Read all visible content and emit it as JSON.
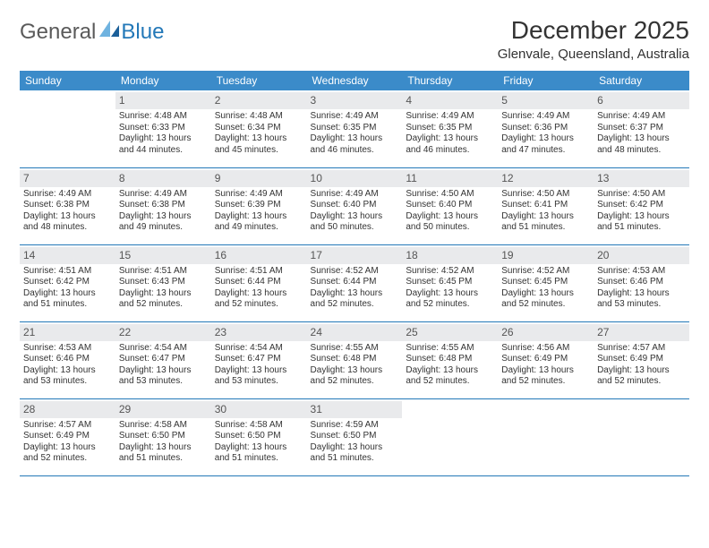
{
  "logo": {
    "text1": "General",
    "text2": "Blue"
  },
  "title": "December 2025",
  "location": "Glenvale, Queensland, Australia",
  "colors": {
    "header_bg": "#3b8bc9",
    "header_text": "#ffffff",
    "daynum_bg": "#e9eaec",
    "border": "#2378b8",
    "brand_gray": "#5a5a5a",
    "brand_blue": "#2378b8"
  },
  "weekdays": [
    "Sunday",
    "Monday",
    "Tuesday",
    "Wednesday",
    "Thursday",
    "Friday",
    "Saturday"
  ],
  "weeks": [
    [
      null,
      {
        "n": "1",
        "sr": "Sunrise: 4:48 AM",
        "ss": "Sunset: 6:33 PM",
        "d1": "Daylight: 13 hours",
        "d2": "and 44 minutes."
      },
      {
        "n": "2",
        "sr": "Sunrise: 4:48 AM",
        "ss": "Sunset: 6:34 PM",
        "d1": "Daylight: 13 hours",
        "d2": "and 45 minutes."
      },
      {
        "n": "3",
        "sr": "Sunrise: 4:49 AM",
        "ss": "Sunset: 6:35 PM",
        "d1": "Daylight: 13 hours",
        "d2": "and 46 minutes."
      },
      {
        "n": "4",
        "sr": "Sunrise: 4:49 AM",
        "ss": "Sunset: 6:35 PM",
        "d1": "Daylight: 13 hours",
        "d2": "and 46 minutes."
      },
      {
        "n": "5",
        "sr": "Sunrise: 4:49 AM",
        "ss": "Sunset: 6:36 PM",
        "d1": "Daylight: 13 hours",
        "d2": "and 47 minutes."
      },
      {
        "n": "6",
        "sr": "Sunrise: 4:49 AM",
        "ss": "Sunset: 6:37 PM",
        "d1": "Daylight: 13 hours",
        "d2": "and 48 minutes."
      }
    ],
    [
      {
        "n": "7",
        "sr": "Sunrise: 4:49 AM",
        "ss": "Sunset: 6:38 PM",
        "d1": "Daylight: 13 hours",
        "d2": "and 48 minutes."
      },
      {
        "n": "8",
        "sr": "Sunrise: 4:49 AM",
        "ss": "Sunset: 6:38 PM",
        "d1": "Daylight: 13 hours",
        "d2": "and 49 minutes."
      },
      {
        "n": "9",
        "sr": "Sunrise: 4:49 AM",
        "ss": "Sunset: 6:39 PM",
        "d1": "Daylight: 13 hours",
        "d2": "and 49 minutes."
      },
      {
        "n": "10",
        "sr": "Sunrise: 4:49 AM",
        "ss": "Sunset: 6:40 PM",
        "d1": "Daylight: 13 hours",
        "d2": "and 50 minutes."
      },
      {
        "n": "11",
        "sr": "Sunrise: 4:50 AM",
        "ss": "Sunset: 6:40 PM",
        "d1": "Daylight: 13 hours",
        "d2": "and 50 minutes."
      },
      {
        "n": "12",
        "sr": "Sunrise: 4:50 AM",
        "ss": "Sunset: 6:41 PM",
        "d1": "Daylight: 13 hours",
        "d2": "and 51 minutes."
      },
      {
        "n": "13",
        "sr": "Sunrise: 4:50 AM",
        "ss": "Sunset: 6:42 PM",
        "d1": "Daylight: 13 hours",
        "d2": "and 51 minutes."
      }
    ],
    [
      {
        "n": "14",
        "sr": "Sunrise: 4:51 AM",
        "ss": "Sunset: 6:42 PM",
        "d1": "Daylight: 13 hours",
        "d2": "and 51 minutes."
      },
      {
        "n": "15",
        "sr": "Sunrise: 4:51 AM",
        "ss": "Sunset: 6:43 PM",
        "d1": "Daylight: 13 hours",
        "d2": "and 52 minutes."
      },
      {
        "n": "16",
        "sr": "Sunrise: 4:51 AM",
        "ss": "Sunset: 6:44 PM",
        "d1": "Daylight: 13 hours",
        "d2": "and 52 minutes."
      },
      {
        "n": "17",
        "sr": "Sunrise: 4:52 AM",
        "ss": "Sunset: 6:44 PM",
        "d1": "Daylight: 13 hours",
        "d2": "and 52 minutes."
      },
      {
        "n": "18",
        "sr": "Sunrise: 4:52 AM",
        "ss": "Sunset: 6:45 PM",
        "d1": "Daylight: 13 hours",
        "d2": "and 52 minutes."
      },
      {
        "n": "19",
        "sr": "Sunrise: 4:52 AM",
        "ss": "Sunset: 6:45 PM",
        "d1": "Daylight: 13 hours",
        "d2": "and 52 minutes."
      },
      {
        "n": "20",
        "sr": "Sunrise: 4:53 AM",
        "ss": "Sunset: 6:46 PM",
        "d1": "Daylight: 13 hours",
        "d2": "and 53 minutes."
      }
    ],
    [
      {
        "n": "21",
        "sr": "Sunrise: 4:53 AM",
        "ss": "Sunset: 6:46 PM",
        "d1": "Daylight: 13 hours",
        "d2": "and 53 minutes."
      },
      {
        "n": "22",
        "sr": "Sunrise: 4:54 AM",
        "ss": "Sunset: 6:47 PM",
        "d1": "Daylight: 13 hours",
        "d2": "and 53 minutes."
      },
      {
        "n": "23",
        "sr": "Sunrise: 4:54 AM",
        "ss": "Sunset: 6:47 PM",
        "d1": "Daylight: 13 hours",
        "d2": "and 53 minutes."
      },
      {
        "n": "24",
        "sr": "Sunrise: 4:55 AM",
        "ss": "Sunset: 6:48 PM",
        "d1": "Daylight: 13 hours",
        "d2": "and 52 minutes."
      },
      {
        "n": "25",
        "sr": "Sunrise: 4:55 AM",
        "ss": "Sunset: 6:48 PM",
        "d1": "Daylight: 13 hours",
        "d2": "and 52 minutes."
      },
      {
        "n": "26",
        "sr": "Sunrise: 4:56 AM",
        "ss": "Sunset: 6:49 PM",
        "d1": "Daylight: 13 hours",
        "d2": "and 52 minutes."
      },
      {
        "n": "27",
        "sr": "Sunrise: 4:57 AM",
        "ss": "Sunset: 6:49 PM",
        "d1": "Daylight: 13 hours",
        "d2": "and 52 minutes."
      }
    ],
    [
      {
        "n": "28",
        "sr": "Sunrise: 4:57 AM",
        "ss": "Sunset: 6:49 PM",
        "d1": "Daylight: 13 hours",
        "d2": "and 52 minutes."
      },
      {
        "n": "29",
        "sr": "Sunrise: 4:58 AM",
        "ss": "Sunset: 6:50 PM",
        "d1": "Daylight: 13 hours",
        "d2": "and 51 minutes."
      },
      {
        "n": "30",
        "sr": "Sunrise: 4:58 AM",
        "ss": "Sunset: 6:50 PM",
        "d1": "Daylight: 13 hours",
        "d2": "and 51 minutes."
      },
      {
        "n": "31",
        "sr": "Sunrise: 4:59 AM",
        "ss": "Sunset: 6:50 PM",
        "d1": "Daylight: 13 hours",
        "d2": "and 51 minutes."
      },
      null,
      null,
      null
    ]
  ]
}
